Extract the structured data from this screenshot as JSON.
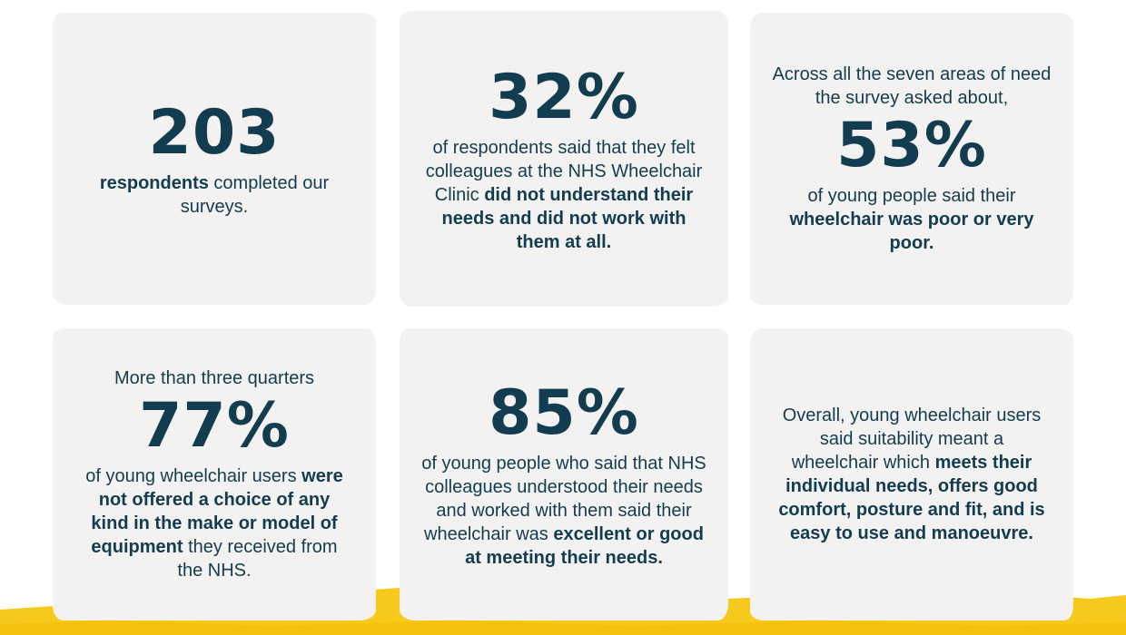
{
  "colors": {
    "background": "#ffffff",
    "card": "#f3f2f1",
    "text": "#123c50",
    "accent_yellow": "#f7c91c"
  },
  "cards": [
    {
      "stat": "203",
      "text_bold": "respondents",
      "text_after": " completed our surveys."
    },
    {
      "stat": "32%",
      "text_before": "of respondents said that they felt colleagues at the NHS Wheelchair Clinic ",
      "text_bold": "did not understand their needs and did not work with them at all."
    },
    {
      "intro": "Across all the seven areas of need the survey asked about,",
      "stat": "53%",
      "text_before": "of young people said their ",
      "text_bold": "wheelchair was poor or very poor."
    },
    {
      "intro": "More than three quarters",
      "stat": "77%",
      "text_before": "of young wheelchair users ",
      "text_bold": "were not offered a choice of any kind in the make or model of equipment",
      "text_after": " they received from the NHS."
    },
    {
      "stat": "85%",
      "text_before": "of young people who said that NHS colleagues understood their needs and worked with them said their wheelchair was ",
      "text_bold": "excellent or good at meeting their needs."
    },
    {
      "text_before": "Overall, young wheelchair users said suitability meant a wheelchair which ",
      "text_bold": "meets their individual needs, offers good comfort, posture and fit, and is easy to use and manoeuvre."
    }
  ]
}
